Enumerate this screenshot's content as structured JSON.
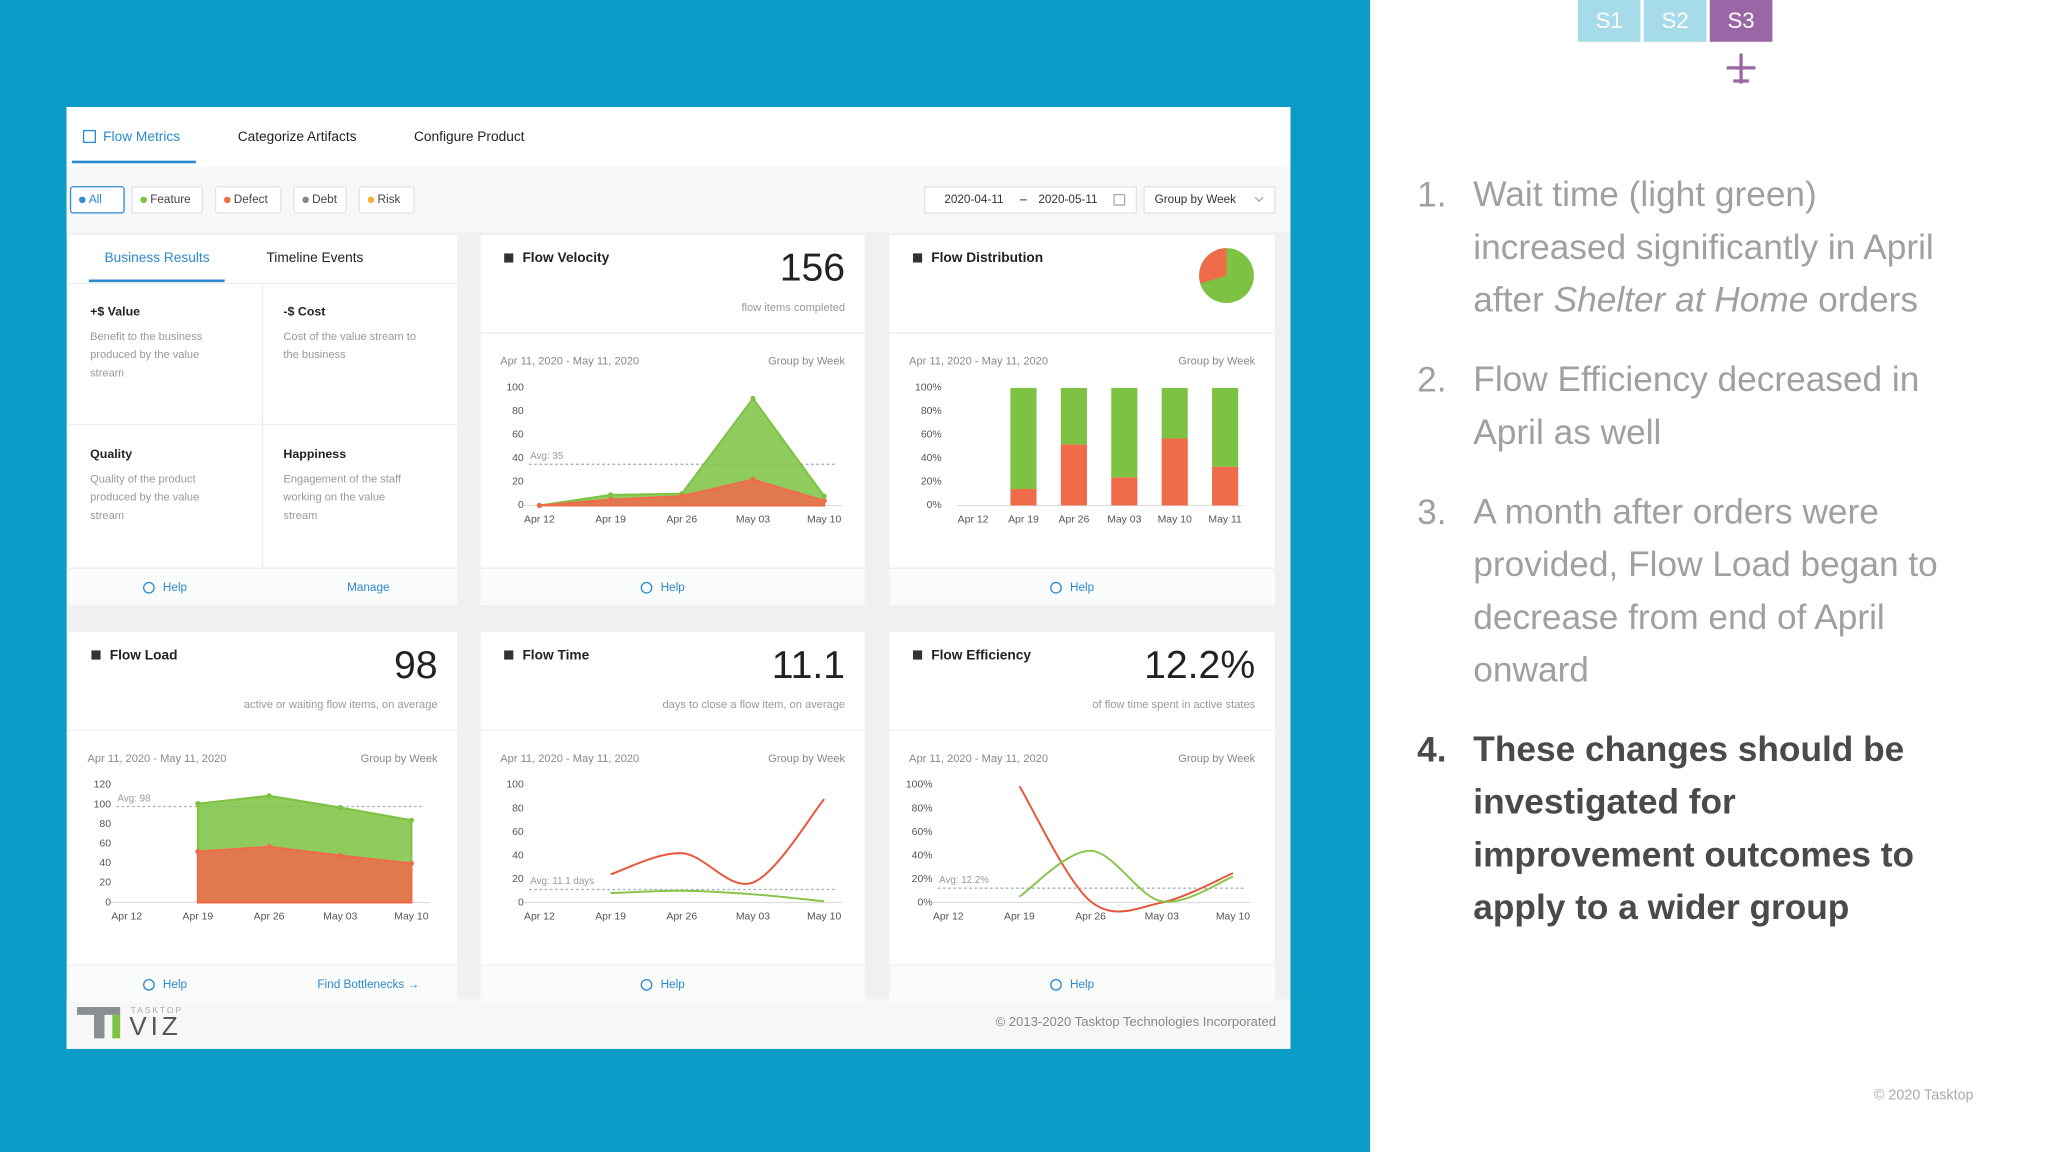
{
  "slide": {
    "tabs": [
      "S1",
      "S2",
      "S3"
    ],
    "points": [
      {
        "number": "1.",
        "lines": [
          [
            "Wait time (light green)"
          ],
          [
            "increased significantly in April"
          ],
          [
            "after ",
            "Shelter at Home",
            " orders"
          ]
        ]
      },
      {
        "number": "2.",
        "lines": [
          [
            "Flow Efficiency decreased in"
          ],
          [
            "April as well"
          ]
        ]
      },
      {
        "number": "3.",
        "lines": [
          [
            "A month after orders were"
          ],
          [
            "provided, Flow Load began to"
          ],
          [
            "decrease from end of April"
          ],
          [
            "onward"
          ]
        ]
      },
      {
        "number": "4.",
        "lines": [
          [
            "These changes should be"
          ],
          [
            "investigated for"
          ],
          [
            "improvement outcomes to"
          ],
          [
            "apply to a wider group"
          ]
        ]
      }
    ],
    "copyright": "© 2020 Tasktop"
  },
  "dashboard": {
    "nav": [
      "Flow Metrics",
      "Categorize Artifacts",
      "Configure Product"
    ],
    "filters": [
      "All",
      "Feature",
      "Defect",
      "Debt",
      "Risk"
    ],
    "date_from": "2020-04-11",
    "date_to": "2020-05-11",
    "group": "Group by Week",
    "business": {
      "tabs": [
        "Business Results",
        "Timeline Events"
      ],
      "cells": [
        {
          "title": "+$ Value",
          "lines": [
            "Benefit to the business",
            "produced by the value",
            "stream"
          ]
        },
        {
          "title": "-$ Cost",
          "lines": [
            "Cost of the value stream to",
            "the business"
          ]
        },
        {
          "title": "Quality",
          "lines": [
            "Quality of the product",
            "produced by the value",
            "stream"
          ]
        },
        {
          "title": "Happiness",
          "lines": [
            "Engagement of the staff",
            "working on the value",
            "stream"
          ]
        }
      ],
      "links": [
        "Help",
        "Manage"
      ]
    },
    "cards": [
      {
        "title": "Flow Velocity",
        "value": 156,
        "caption": "flow items completed",
        "links": [
          "Help"
        ],
        "chart": {
          "type": "area",
          "date_range": "Apr 11, 2020 - May 11, 2020",
          "group": "Group by Week",
          "categories": [
            "Apr 12",
            "Apr 19",
            "Apr 26",
            "May 03",
            "May 10"
          ],
          "ylim": [
            0,
            100
          ],
          "yticks": [
            0,
            20,
            40,
            60,
            80,
            100
          ],
          "avg": 35,
          "avg_label": "Avg: 35",
          "series": [
            {
              "color": "#7dc242",
              "values": [
                0,
                9,
                10,
                91,
                8
              ]
            },
            {
              "color": "#ef6b4a",
              "values": [
                0,
                5,
                8,
                22,
                4
              ]
            }
          ]
        }
      },
      {
        "title": "Flow Distribution",
        "links": [
          "Help"
        ],
        "chart": {
          "type": "stacked_bar",
          "date_range": "Apr 11, 2020 - May 11, 2020",
          "group": "Group by Week",
          "categories": [
            "Apr 12",
            "Apr 19",
            "Apr 26",
            "May 03",
            "May 10",
            "May 11"
          ],
          "ylim": [
            0,
            100
          ],
          "yticks": [
            {
              "value": 0,
              "label": "0%"
            },
            {
              "value": 20,
              "label": "20%"
            },
            {
              "value": 40,
              "label": "40%"
            },
            {
              "value": 60,
              "label": "60%"
            },
            {
              "value": 80,
              "label": "80%"
            },
            {
              "value": 100,
              "label": "100%"
            }
          ],
          "series": [
            {
              "color": "#ef6b4a",
              "values": [
                null,
                14,
                52,
                24,
                57,
                33
              ]
            },
            {
              "color": "#7dc242",
              "values": [
                null,
                86,
                48,
                76,
                43,
                67
              ]
            }
          ]
        }
      },
      {
        "title": "Flow Load",
        "value": 98,
        "caption": "active or waiting flow items, on average",
        "links": [
          "Help",
          "Find Bottlenecks →"
        ],
        "chart": {
          "type": "area",
          "date_range": "Apr 11, 2020 - May 11, 2020",
          "group": "Group by Week",
          "categories": [
            "Apr 12",
            "Apr 19",
            "Apr 26",
            "May 03",
            "May 10"
          ],
          "ylim": [
            0,
            120
          ],
          "yticks": [
            0,
            20,
            40,
            60,
            80,
            100,
            120
          ],
          "avg": 98,
          "avg_label": "Avg: 98",
          "series": [
            {
              "color": "#7dc242",
              "values": [
                null,
                101,
                109,
                97,
                84
              ]
            },
            {
              "color": "#ef6b4a",
              "values": [
                null,
                52,
                57,
                48,
                40
              ]
            }
          ]
        }
      },
      {
        "title": "Flow Time",
        "value": 11.1,
        "caption": "days to close a flow item, on average",
        "links": [
          "Help"
        ],
        "chart": {
          "type": "line",
          "date_range": "Apr 11, 2020 - May 11, 2020",
          "group": "Group by Week",
          "categories": [
            "Apr 12",
            "Apr 19",
            "Apr 26",
            "May 03",
            "May 10"
          ],
          "ylim": [
            0,
            100
          ],
          "yticks": [
            0,
            20,
            40,
            60,
            80,
            100
          ],
          "avg": 11.1,
          "avg_label": "Avg: 11.1 days",
          "series": [
            {
              "color": "#e8553a",
              "values": [
                null,
                24,
                42,
                17,
                88
              ]
            },
            {
              "color": "#8bc34a",
              "values": [
                null,
                8,
                10,
                7,
                1
              ]
            }
          ]
        }
      },
      {
        "title": "Flow Efficiency",
        "value": "12.2%",
        "caption": "of flow time spent in active states",
        "links": [
          "Help"
        ],
        "chart": {
          "type": "line",
          "date_range": "Apr 11, 2020 - May 11, 2020",
          "group": "Group by Week",
          "categories": [
            "Apr 12",
            "Apr 19",
            "Apr 26",
            "May 03",
            "May 10"
          ],
          "ylim": [
            0,
            100
          ],
          "yticks": [
            {
              "value": 0,
              "label": "0%"
            },
            {
              "value": 20,
              "label": "20%"
            },
            {
              "value": 40,
              "label": "40%"
            },
            {
              "value": 60,
              "label": "60%"
            },
            {
              "value": 80,
              "label": "80%"
            },
            {
              "value": 100,
              "label": "100%"
            }
          ],
          "avg": 12.2,
          "avg_label": "Avg: 12.2%",
          "series": [
            {
              "color": "#e8553a",
              "values": [
                null,
                99,
                1,
                0,
                25
              ]
            },
            {
              "color": "#8bc34a",
              "values": [
                null,
                5,
                44,
                1,
                22
              ]
            }
          ]
        }
      }
    ],
    "footer": {
      "logo_top": "TASKTOP",
      "logo": "VIZ",
      "copyright": "© 2013-2020 Tasktop Technologies Incorporated"
    }
  }
}
